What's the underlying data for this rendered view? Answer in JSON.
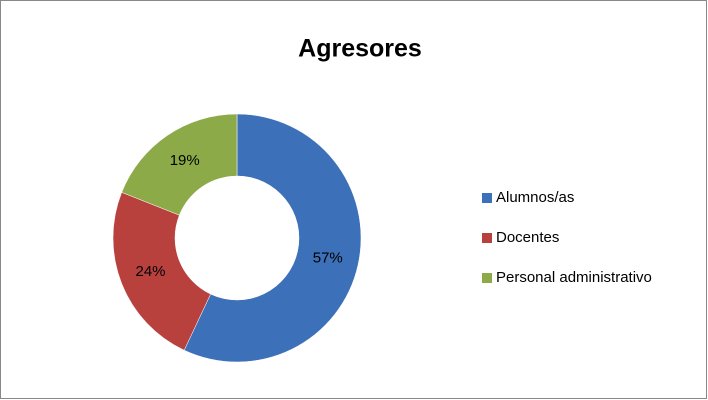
{
  "chart_data": {
    "type": "donut",
    "title": "Agresores",
    "categories": [
      "Alumnos/as",
      "Docentes",
      "Personal administrativo"
    ],
    "values": [
      57,
      24,
      19
    ],
    "value_labels": [
      "57%",
      "24%",
      "19%"
    ],
    "colors": [
      "#3c70b8",
      "#b8413e",
      "#8cab48"
    ],
    "legend": "right"
  }
}
